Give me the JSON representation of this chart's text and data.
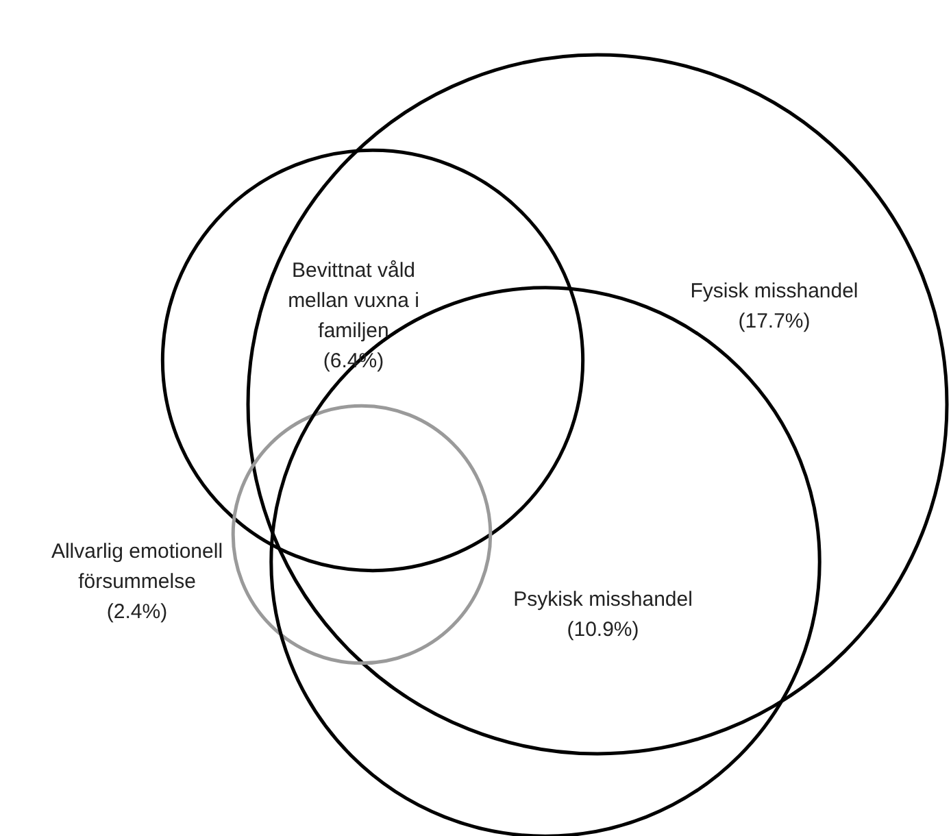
{
  "chart_data": {
    "type": "other",
    "categories": [
      "Fysisk misshandel",
      "Bevittnat våld mellan vuxna i familjen",
      "Allvarlig emotionell försummelse",
      "Psykisk misshandel"
    ],
    "values": [
      17.7,
      6.4,
      2.4,
      10.9
    ],
    "value_labels": [
      "(17.7%)",
      "(6.4%)",
      "(2.4%)",
      "(10.9%)"
    ],
    "colors": [
      "#000000",
      "#000000",
      "#9a9a9a",
      "#000000"
    ]
  }
}
